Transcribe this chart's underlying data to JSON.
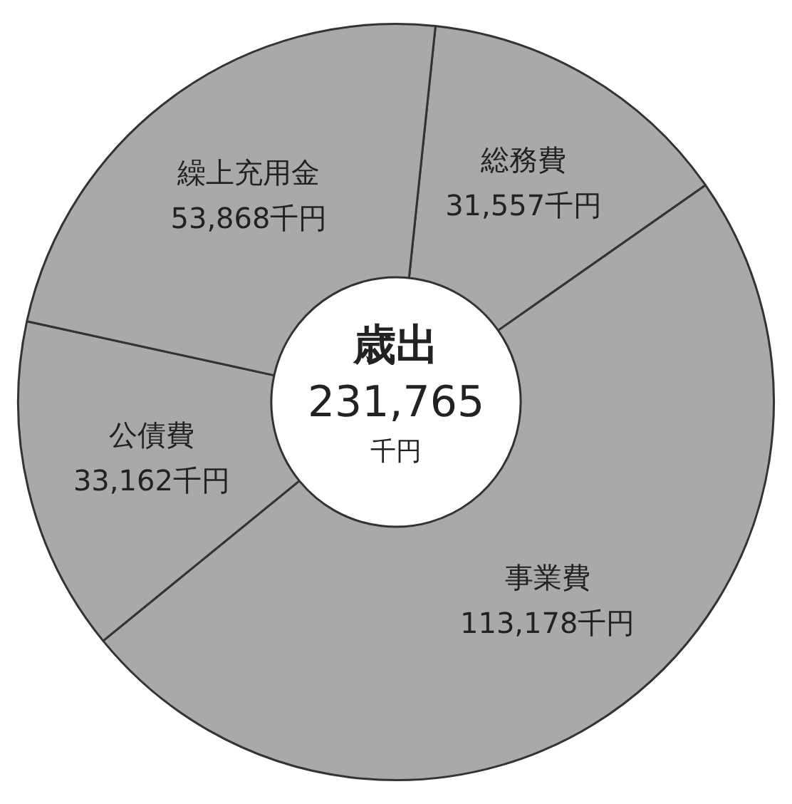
{
  "chart_data": {
    "type": "donut",
    "title": "歳出",
    "subtitle": "231,765",
    "annotations": [
      "千円"
    ],
    "categories": [
      "総務費",
      "事業費",
      "公債費",
      "繰上充用金"
    ],
    "values": [
      31557,
      113178,
      33162,
      53868
    ],
    "colors": [
      "#a9a9a9",
      "#a9a9a9",
      "#a9a9a9",
      "#a9a9a9"
    ],
    "value_labels": [
      "31,557千円",
      "113,178千円",
      "33,162千円",
      "53,868千円"
    ],
    "legend": false
  }
}
